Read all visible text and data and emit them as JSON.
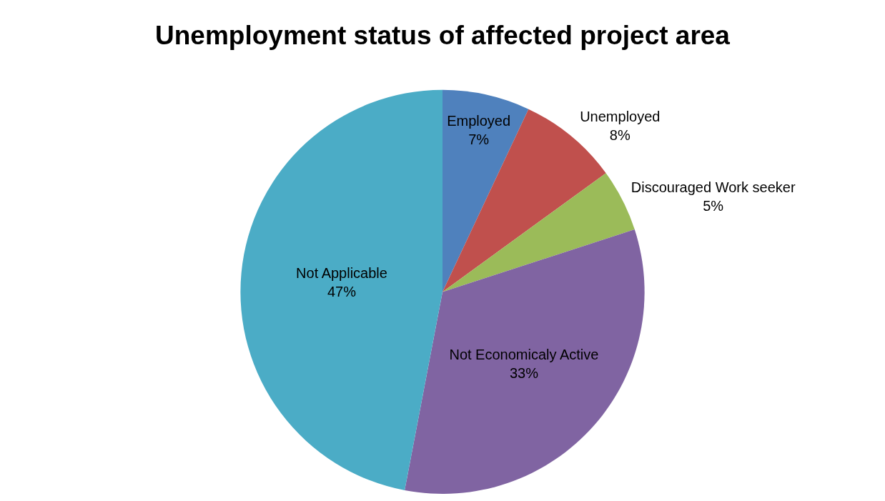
{
  "chart_data": {
    "type": "pie",
    "title": "Unemployment status of affected project area",
    "categories": [
      "Employed",
      "Unemployed",
      "Discouraged Work seeker",
      "Not Economicaly Active",
      "Not Applicable"
    ],
    "values": [
      7,
      8,
      5,
      33,
      47
    ],
    "colors": [
      "#4f81bd",
      "#c0504d",
      "#9bbb59",
      "#8064a2",
      "#4bacc6"
    ],
    "value_labels": [
      "7%",
      "8%",
      "5%",
      "33%",
      "47%"
    ],
    "legend": false
  }
}
